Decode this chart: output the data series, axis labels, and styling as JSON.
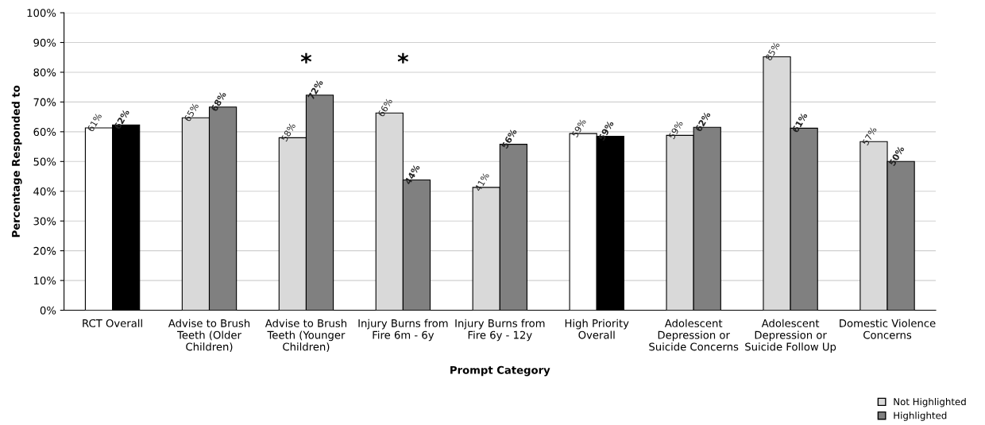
{
  "chart_data": {
    "type": "bar",
    "xlabel": "Prompt Category",
    "ylabel": "Percentage Responded to",
    "categories": [
      "RCT Overall",
      "Advise to Brush\nTeeth (Older\nChildren)",
      "Advise to Brush\nTeeth (Younger\nChildren)",
      "Injury Burns from\nFire 6m - 6y",
      "Injury Burns from\nFire 6y - 12y",
      "High Priority\nOverall",
      "Adolescent\nDepression or\nSuicide Concerns",
      "Adolescent\nDepression or\nSuicide Follow Up",
      "Domestic Violence\nConcerns"
    ],
    "series": [
      {
        "name": "Not Highlighted",
        "color": "#d9d9d9",
        "colors": [
          "#ffffff",
          "#d9d9d9",
          "#d9d9d9",
          "#d9d9d9",
          "#d9d9d9",
          "#ffffff",
          "#d9d9d9",
          "#d9d9d9",
          "#d9d9d9"
        ],
        "values": [
          61.3,
          64.7,
          58,
          66.3,
          41.3,
          59.4,
          58.8,
          85.2,
          56.7
        ],
        "value_labels": [
          "61%",
          "65%",
          "58%",
          "66%",
          "41%",
          "59%",
          "59%",
          "85%",
          "57%"
        ]
      },
      {
        "name": "Highlighted",
        "color": "#808080",
        "colors": [
          "#000000",
          "#808080",
          "#808080",
          "#808080",
          "#808080",
          "#000000",
          "#808080",
          "#808080",
          "#808080"
        ],
        "values": [
          62.3,
          68.3,
          72.3,
          43.8,
          55.8,
          58.5,
          61.5,
          61.2,
          50
        ],
        "value_labels": [
          "62%",
          "68%",
          "72%",
          "44%",
          "56%",
          "59%",
          "62%",
          "61%",
          "50%"
        ]
      }
    ],
    "ylim": [
      0,
      100
    ],
    "yticks": [
      {
        "value": 0,
        "label": "0%"
      },
      {
        "value": 10,
        "label": "10%"
      },
      {
        "value": 20,
        "label": "20%"
      },
      {
        "value": 30,
        "label": "30%"
      },
      {
        "value": 40,
        "label": "40%"
      },
      {
        "value": 50,
        "label": "50%"
      },
      {
        "value": 60,
        "label": "60%"
      },
      {
        "value": 70,
        "label": "70%"
      },
      {
        "value": 80,
        "label": "80%"
      },
      {
        "value": 90,
        "label": "90%"
      },
      {
        "value": 100,
        "label": "100%"
      }
    ],
    "grid": "y",
    "legend": "bottom right",
    "annotations": [
      "*",
      "*"
    ]
  }
}
